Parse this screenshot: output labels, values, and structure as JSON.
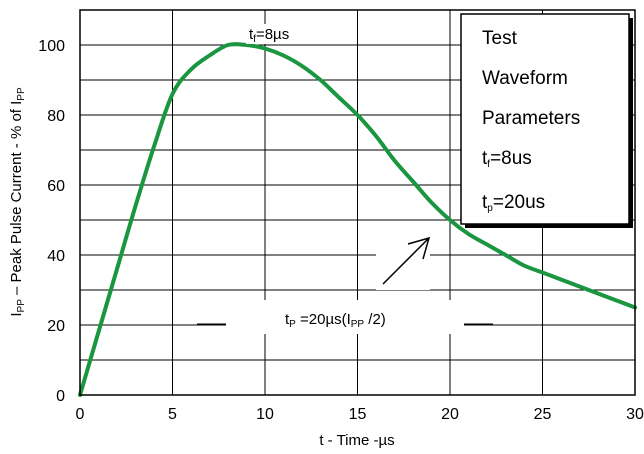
{
  "chart_data": {
    "type": "line",
    "xlabel": "t - Time -µs",
    "ylabel": {
      "p1": "I",
      "p1_sub": "PP",
      "p2": " – Peak Pulse Current - % of  I",
      "p2_sub": "PP"
    },
    "xlim": [
      0,
      30
    ],
    "ylim": [
      0,
      110
    ],
    "x_ticks": [
      "0",
      "5",
      "10",
      "15",
      "20",
      "25",
      "30"
    ],
    "y_ticks": [
      "0",
      "20",
      "40",
      "60",
      "80",
      "100"
    ],
    "grid": true,
    "series_color": "#1a9640",
    "series": [
      {
        "x": [
          0,
          1,
          2,
          3,
          4,
          5,
          6,
          7,
          8,
          9,
          10,
          11,
          12,
          13,
          14,
          15,
          16,
          17,
          18,
          19,
          20,
          21,
          22,
          23,
          24,
          25,
          26,
          27,
          28,
          29,
          30
        ],
        "values": [
          0,
          18,
          36,
          54,
          71,
          86,
          93,
          97,
          100,
          100,
          99,
          97,
          94,
          90,
          85,
          80,
          74,
          67,
          61,
          55,
          50,
          46,
          43,
          40,
          37,
          35,
          33,
          31,
          29,
          27,
          25
        ]
      }
    ],
    "annotations": {
      "peak": {
        "p1": "t",
        "sub": "f",
        "p2": "=8µs"
      },
      "half": {
        "p1": "t",
        "sub": "P",
        "p2": " =20µs(I",
        "sub2": "PP",
        "p3": " /2)"
      }
    },
    "legend_box": {
      "line1": "Test",
      "line2": "Waveform",
      "line3": "Parameters",
      "line4": {
        "p1": "t",
        "sub": "f",
        "p2": "=8us"
      },
      "line5": {
        "p1": "t",
        "sub": "p",
        "p2": "=20us"
      }
    }
  }
}
